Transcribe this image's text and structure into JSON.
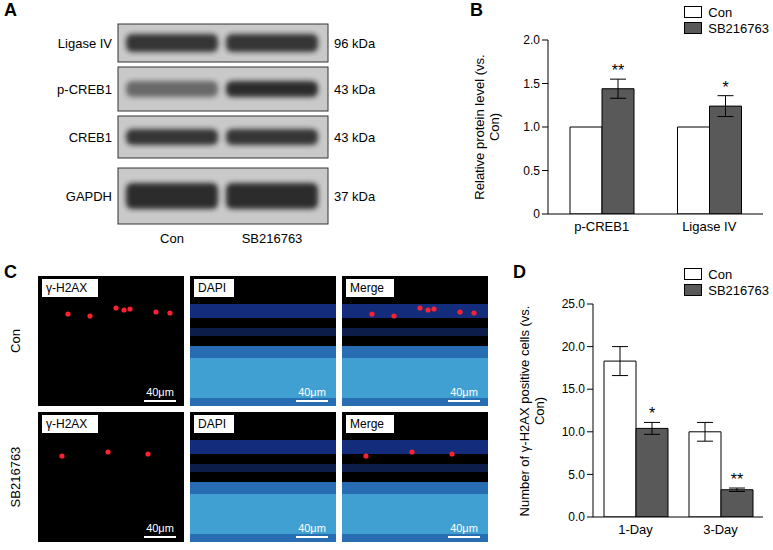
{
  "blot": {
    "label": "A",
    "lanes": [
      "Con",
      "SB216763"
    ],
    "rows": [
      {
        "name": "Ligase IV",
        "size": "96 kDa"
      },
      {
        "name": "p-CREB1",
        "size": "43 kDa"
      },
      {
        "name": "CREB1",
        "size": "43 kDa"
      },
      {
        "name": "GAPDH",
        "size": "37 kDa"
      }
    ]
  },
  "chart_data": [
    {
      "type": "bar",
      "title": "B",
      "y_label": "Relative protein level (vs. Con)",
      "categories": [
        "p-CREB1",
        "Ligase IV"
      ],
      "series": [
        {
          "name": "Con",
          "color": "#ffffff",
          "values": [
            1,
            1
          ]
        },
        {
          "name": "SB216763",
          "color": "#595959",
          "values": [
            1.44,
            1.24
          ],
          "errors": [
            0.11,
            0.12
          ],
          "annotations": [
            "**",
            "*"
          ]
        }
      ],
      "ylim": [
        0,
        2
      ],
      "yticks": [
        0,
        0.5,
        {
          "value": 1,
          "label": "1.0"
        },
        1.5,
        {
          "value": 2,
          "label": "2.0"
        }
      ],
      "legend": "upper right"
    },
    {
      "type": "bar",
      "title": "D",
      "y_label": "Number of γ-H2AX positive cells (vs. Con)",
      "categories": [
        "1-Day",
        "3-Day"
      ],
      "series": [
        {
          "name": "Con",
          "color": "#ffffff",
          "values": [
            18.3,
            10.0
          ],
          "errors": [
            1.7,
            1.1
          ]
        },
        {
          "name": "SB216763",
          "color": "#595959",
          "values": [
            10.4,
            3.2
          ],
          "errors": [
            0.7,
            0.2
          ],
          "annotations": [
            "*",
            "**"
          ]
        }
      ],
      "ylim": [
        0,
        25
      ],
      "yticks": [
        {
          "value": 0,
          "label": "0.0"
        },
        {
          "value": 5,
          "label": "5.0"
        },
        {
          "value": 10,
          "label": "10.0"
        },
        {
          "value": 15,
          "label": "15.0"
        },
        {
          "value": 20,
          "label": "20.0"
        },
        {
          "value": 25,
          "label": "25.0"
        }
      ],
      "legend": "upper right"
    }
  ],
  "micrographs": {
    "label": "C",
    "rows": [
      "Con",
      "SB216763"
    ],
    "channels": [
      "γ-H2AX",
      "DAPI",
      "Merge"
    ],
    "scale_bar": "40μm"
  }
}
